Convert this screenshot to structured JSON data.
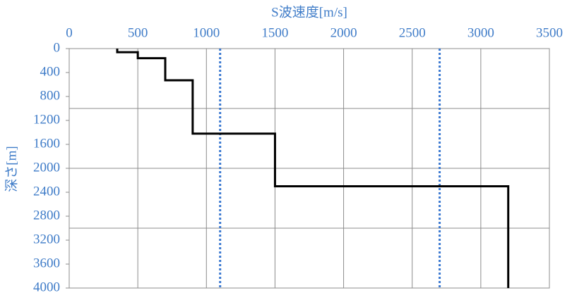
{
  "chart_data": {
    "type": "line",
    "title": "S波速度[m/s]",
    "y_label": "深さ[m]",
    "x_axis_position": "top",
    "y_inverted": true,
    "xlim": [
      0,
      3500
    ],
    "xticks": [
      0,
      500,
      1000,
      1500,
      2000,
      2500,
      3000,
      3500
    ],
    "ylim": [
      0,
      4000
    ],
    "yticks": [
      0,
      400,
      800,
      1200,
      1600,
      2000,
      2400,
      2800,
      3200,
      3600,
      4000
    ],
    "xgrid": true,
    "ygrid": [
      1000,
      2000,
      3000
    ],
    "label_color": "#3f7cc8",
    "series": [
      {
        "color": "#000000",
        "x": [
          350,
          350,
          500,
          500,
          700,
          700,
          900,
          900,
          1500,
          1500,
          3200,
          3200
        ],
        "y": [
          0,
          60,
          60,
          160,
          160,
          530,
          530,
          1420,
          1420,
          2300,
          2300,
          4000
        ]
      }
    ],
    "vlines": [
      {
        "value": 1100,
        "color": "#3a78d0",
        "style": "dotted"
      },
      {
        "value": 2700,
        "color": "#3a78d0",
        "style": "dotted"
      }
    ]
  }
}
